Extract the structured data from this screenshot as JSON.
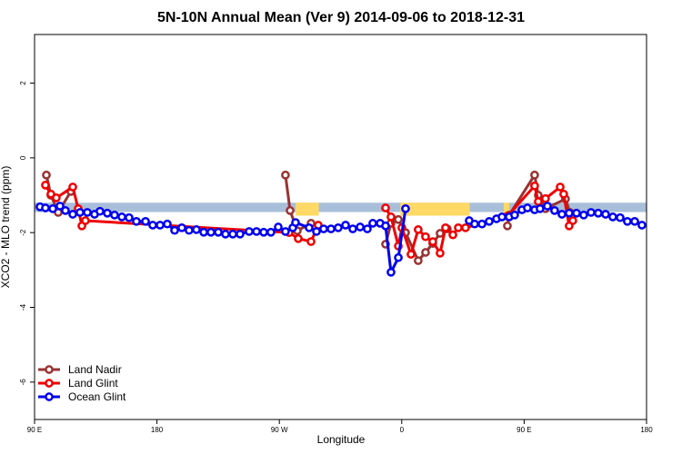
{
  "chart_data": {
    "type": "line",
    "title": "5N-10N Annual Mean (Ver 9)   2014-09-06 to 2018-12-31",
    "x_label": "Longitude",
    "y_label": "XCO2 - MLO trend (ppm)",
    "xlim": [
      90,
      540
    ],
    "xticks": [
      {
        "value": 90,
        "label": "90 E"
      },
      {
        "value": 180,
        "label": "180"
      },
      {
        "value": 270,
        "label": "90 W"
      },
      {
        "value": 360,
        "label": "0"
      },
      {
        "value": 450,
        "label": "90 E"
      },
      {
        "value": 540,
        "label": "180"
      }
    ],
    "ylim": [
      -7,
      3.3
    ],
    "yticks": [
      2,
      0,
      -2,
      -4,
      -6
    ],
    "band": {
      "color": "#a9bfd9",
      "range": [
        -1.45,
        -1.2
      ]
    },
    "highlights": {
      "color": "#ffd966",
      "ranges": [
        [
          282,
          299
        ],
        [
          359,
          410
        ],
        [
          435,
          439
        ]
      ]
    },
    "legend": "bottom-left",
    "series": [
      {
        "name": "Land Nadir",
        "color": "#993333",
        "x": [
          98.7,
          102.0,
          107.4,
          116.7,
          122.1,
          274.5,
          277.9,
          283.2,
          293.3,
          298.6,
          348.1,
          352.1,
          357.5,
          362.8,
          372.1,
          377.5,
          382.8,
          388.2,
          393.5,
          398.9,
          437.7,
          439.0,
          457.7,
          460.4,
          465.7,
          480.4,
          483.7
        ],
        "values": [
          -0.46,
          -1.0,
          -1.46,
          -0.9,
          null,
          -0.46,
          -1.41,
          -1.95,
          -1.75,
          null,
          -2.31,
          -1.75,
          -1.65,
          -2.0,
          -2.75,
          -2.53,
          -2.29,
          -2.02,
          -1.9,
          null,
          -1.82,
          -1.53,
          -0.46,
          -1.0,
          -1.36,
          -1.1,
          -1.46
        ]
      },
      {
        "name": "Land Glint",
        "color": "#ee0000",
        "x": [
          98.0,
          102.0,
          106.0,
          118.1,
          122.1,
          124.8,
          127.4,
          277.2,
          283.9,
          293.3,
          298.6,
          302.6,
          348.1,
          352.1,
          357.5,
          360.1,
          366.8,
          372.1,
          377.5,
          382.8,
          388.2,
          392.2,
          397.6,
          401.6,
          406.9,
          437.7,
          457.7,
          460.4,
          465.7,
          476.5,
          479.1,
          483.1,
          485.8
        ],
        "values": [
          -0.73,
          -0.97,
          -1.07,
          -0.78,
          -1.36,
          -1.82,
          -1.68,
          -2.0,
          -2.16,
          -2.24,
          -1.8,
          null,
          -1.34,
          -1.58,
          -2.36,
          -1.87,
          -2.58,
          -1.92,
          -2.11,
          -2.24,
          -2.55,
          -1.87,
          -2.06,
          -1.87,
          -1.87,
          -1.56,
          -0.75,
          -1.17,
          -1.09,
          -0.78,
          -0.97,
          -1.82,
          -1.68
        ]
      },
      {
        "name": "Ocean Glint",
        "color": "#0000ee",
        "x": [
          94.0,
          98.0,
          103.4,
          108.7,
          112.7,
          118.1,
          123.4,
          128.8,
          134.1,
          138.1,
          143.5,
          148.8,
          154.2,
          159.5,
          164.9,
          171.6,
          176.9,
          182.3,
          187.6,
          193.0,
          198.3,
          203.6,
          209.0,
          214.4,
          219.7,
          225.1,
          230.4,
          235.8,
          241.1,
          247.8,
          253.2,
          258.5,
          263.8,
          269.2,
          274.5,
          279.9,
          281.9,
          291.9,
          297.3,
          302.6,
          308.0,
          313.3,
          318.7,
          324.0,
          329.4,
          334.7,
          338.7,
          344.1,
          348.1,
          352.1,
          357.5,
          362.8,
          380.0,
          409.6,
          413.6,
          419.0,
          424.3,
          429.7,
          433.7,
          439.0,
          443.0,
          448.4,
          452.4,
          457.7,
          461.7,
          467.1,
          472.4,
          477.8,
          483.1,
          488.5,
          493.8,
          499.2,
          504.5,
          509.9,
          515.2,
          520.6,
          525.9,
          531.3,
          536.6
        ],
        "values": [
          -1.31,
          -1.34,
          -1.36,
          -1.29,
          -1.41,
          -1.51,
          -1.46,
          -1.46,
          -1.51,
          -1.43,
          -1.48,
          -1.53,
          -1.58,
          -1.6,
          -1.7,
          -1.7,
          -1.8,
          -1.8,
          -1.77,
          -1.94,
          -1.87,
          -1.94,
          -1.92,
          -1.99,
          -1.99,
          -1.99,
          -2.04,
          -2.04,
          -2.04,
          -1.97,
          -1.97,
          -1.99,
          -1.99,
          -1.85,
          -1.97,
          -1.87,
          -1.73,
          -1.87,
          -1.97,
          -1.9,
          -1.9,
          -1.87,
          -1.8,
          -1.9,
          -1.85,
          -1.9,
          -1.75,
          -1.75,
          -1.82,
          -3.06,
          -2.67,
          -1.36,
          null,
          -1.68,
          -1.77,
          -1.77,
          -1.7,
          -1.63,
          -1.58,
          -1.58,
          -1.53,
          -1.39,
          -1.34,
          -1.39,
          -1.36,
          -1.29,
          -1.41,
          -1.51,
          -1.48,
          -1.48,
          -1.53,
          -1.46,
          -1.48,
          -1.51,
          -1.58,
          -1.6,
          -1.7,
          -1.7,
          -1.8
        ]
      }
    ]
  }
}
